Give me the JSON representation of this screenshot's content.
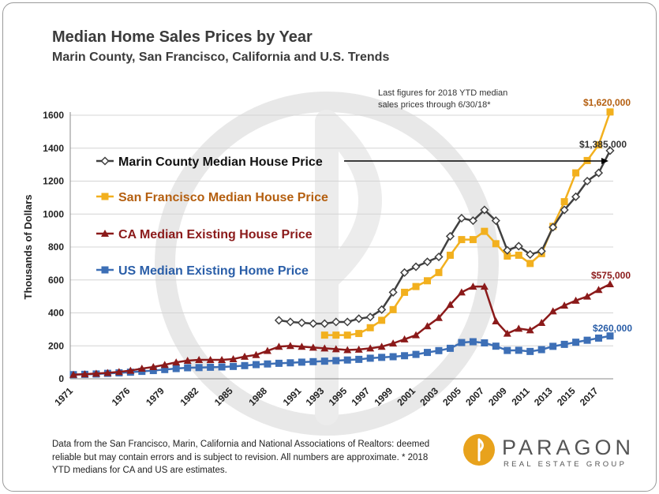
{
  "title": "Median Home Sales Prices by Year",
  "subtitle": "Marin County, San Francisco, California and U.S. Trends",
  "note": "Last figures for 2018 YTD median\nsales prices through 6/30/18*",
  "footer": "Data from the San Francisco, Marin, California and National Associations of Realtors:  deemed reliable but may contain errors and is subject to revision. All numbers are approximate. * 2018 YTD medians for CA and US are estimates.",
  "logo": {
    "name": "PARAGON",
    "tagline": "REAL ESTATE GROUP",
    "color": "#e8a21c"
  },
  "chart_data": {
    "type": "line",
    "title": "Median Home Sales Prices by Year",
    "ylabel": "Thousands of Dollars",
    "xlabel": "",
    "ylim": [
      0,
      1600
    ],
    "yticks": [
      0,
      200,
      400,
      600,
      800,
      1000,
      1200,
      1400,
      1600
    ],
    "xticks": [
      1971,
      1976,
      1979,
      1982,
      1985,
      1988,
      1991,
      1993,
      1995,
      1997,
      1999,
      2001,
      2003,
      2005,
      2007,
      2009,
      2011,
      2013,
      2015,
      2017
    ],
    "grid": true,
    "legend": "inside-top-left",
    "series": [
      {
        "name": "Marin County Median House Price",
        "color": "#404040",
        "marker": "diamond-open",
        "x": [
          1989,
          1990,
          1991,
          1992,
          1993,
          1994,
          1995,
          1996,
          1997,
          1998,
          1999,
          2000,
          2001,
          2002,
          2003,
          2004,
          2005,
          2006,
          2007,
          2008,
          2009,
          2010,
          2011,
          2012,
          2013,
          2014,
          2015,
          2016,
          2017,
          2018
        ],
        "values": [
          355,
          345,
          340,
          335,
          335,
          345,
          345,
          365,
          375,
          420,
          525,
          645,
          680,
          710,
          740,
          865,
          975,
          960,
          1025,
          960,
          780,
          805,
          755,
          775,
          920,
          1025,
          1105,
          1200,
          1250,
          1385
        ]
      },
      {
        "name": "San Francisco Median House Price",
        "color": "#f2b01e",
        "marker": "square",
        "x": [
          1993,
          1994,
          1995,
          1996,
          1997,
          1998,
          1999,
          2000,
          2001,
          2002,
          2003,
          2004,
          2005,
          2006,
          2007,
          2008,
          2009,
          2010,
          2011,
          2012,
          2013,
          2014,
          2015,
          2016,
          2017,
          2018
        ],
        "values": [
          265,
          265,
          265,
          275,
          310,
          355,
          420,
          525,
          560,
          595,
          645,
          750,
          845,
          845,
          895,
          820,
          745,
          750,
          700,
          760,
          925,
          1075,
          1250,
          1325,
          1420,
          1620
        ]
      },
      {
        "name": "CA Median Existing House Price",
        "color": "#8b1a1a",
        "marker": "triangle",
        "x": [
          1971,
          1972,
          1973,
          1974,
          1975,
          1976,
          1977,
          1978,
          1979,
          1980,
          1981,
          1982,
          1983,
          1984,
          1985,
          1986,
          1987,
          1988,
          1989,
          1990,
          1991,
          1992,
          1993,
          1994,
          1995,
          1996,
          1997,
          1998,
          1999,
          2000,
          2001,
          2002,
          2003,
          2004,
          2005,
          2006,
          2007,
          2008,
          2009,
          2010,
          2011,
          2012,
          2013,
          2014,
          2015,
          2016,
          2017,
          2018
        ],
        "values": [
          25,
          28,
          32,
          36,
          42,
          50,
          62,
          72,
          85,
          100,
          110,
          115,
          115,
          115,
          120,
          135,
          145,
          170,
          195,
          200,
          195,
          190,
          185,
          180,
          175,
          178,
          185,
          195,
          215,
          240,
          265,
          320,
          370,
          450,
          525,
          560,
          560,
          350,
          275,
          305,
          295,
          340,
          410,
          445,
          475,
          500,
          540,
          575
        ]
      },
      {
        "name": "US Median Existing Home Price",
        "color": "#3d6fb6",
        "marker": "square",
        "x": [
          1971,
          1972,
          1973,
          1974,
          1975,
          1976,
          1977,
          1978,
          1979,
          1980,
          1981,
          1982,
          1983,
          1984,
          1985,
          1986,
          1987,
          1988,
          1989,
          1990,
          1991,
          1992,
          1993,
          1994,
          1995,
          1996,
          1997,
          1998,
          1999,
          2000,
          2001,
          2002,
          2003,
          2004,
          2005,
          2006,
          2007,
          2008,
          2009,
          2010,
          2011,
          2012,
          2013,
          2014,
          2015,
          2016,
          2017,
          2018
        ],
        "values": [
          25,
          27,
          29,
          33,
          36,
          40,
          45,
          50,
          56,
          62,
          67,
          68,
          70,
          72,
          75,
          80,
          86,
          90,
          94,
          97,
          101,
          104,
          107,
          110,
          114,
          118,
          125,
          130,
          134,
          140,
          148,
          160,
          171,
          185,
          220,
          225,
          218,
          198,
          172,
          173,
          166,
          177,
          197,
          209,
          222,
          234,
          247,
          260
        ]
      }
    ],
    "annotations": [
      {
        "text": "$1,620,000",
        "x": 2018,
        "y": 1620,
        "color": "#b45f10"
      },
      {
        "text": "$1,385,000",
        "x": 2018,
        "y": 1385,
        "color": "#333333"
      },
      {
        "text": "$575,000",
        "x": 2018,
        "y": 575,
        "color": "#8b1a1a"
      },
      {
        "text": "$260,000",
        "x": 2018,
        "y": 260,
        "color": "#2a5ea8"
      }
    ]
  }
}
